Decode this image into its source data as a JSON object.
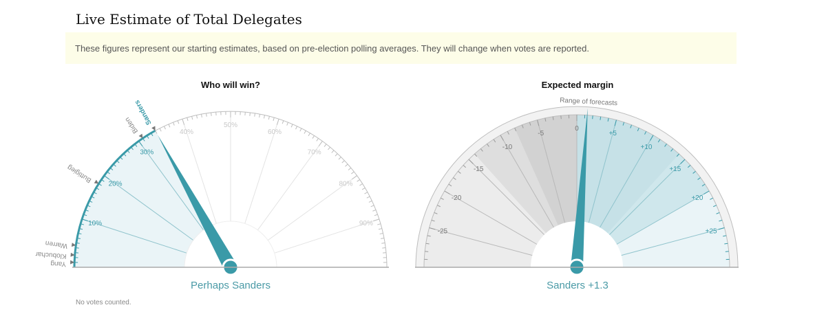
{
  "title": "Live Estimate of Total Delegates",
  "notice": "These figures represent our starting estimates, based on pre-election polling averages. They will change when votes are reported.",
  "footnote": "No votes counted.",
  "colors": {
    "teal": "#3a9aa8",
    "teal_light": "#eaf4f7",
    "gray": "#d9d9d9",
    "gray_dark": "#c2c2c2"
  },
  "chart_data": [
    {
      "type": "gauge",
      "title": "Who will win?",
      "result_label": "Perhaps Sanders",
      "range": [
        0,
        100
      ],
      "tick_labels": [
        "10%",
        "20%",
        "30%",
        "40%",
        "50%",
        "60%",
        "70%",
        "80%",
        "90%"
      ],
      "needle_value": 34,
      "candidates": [
        {
          "name": "Yang",
          "value": 1
        },
        {
          "name": "Klobuchar",
          "value": 2.5
        },
        {
          "name": "Warren",
          "value": 4.5
        },
        {
          "name": "Buttigieg",
          "value": 18
        },
        {
          "name": "Biden",
          "value": 31
        },
        {
          "name": "Sanders",
          "value": 34
        }
      ]
    },
    {
      "type": "gauge",
      "title": "Expected margin",
      "result_label": "Sanders +1.3",
      "range": [
        -30,
        30
      ],
      "range_label": "Range of forecasts",
      "tick_labels": [
        "-25",
        "-20",
        "-15",
        "-10",
        "-5",
        "0",
        "+5",
        "+10",
        "+15",
        "+20",
        "+25"
      ],
      "needle_value": 1.3,
      "forecast_inner_range": [
        -8,
        14
      ],
      "forecast_outer_range": [
        -14,
        20
      ]
    }
  ]
}
